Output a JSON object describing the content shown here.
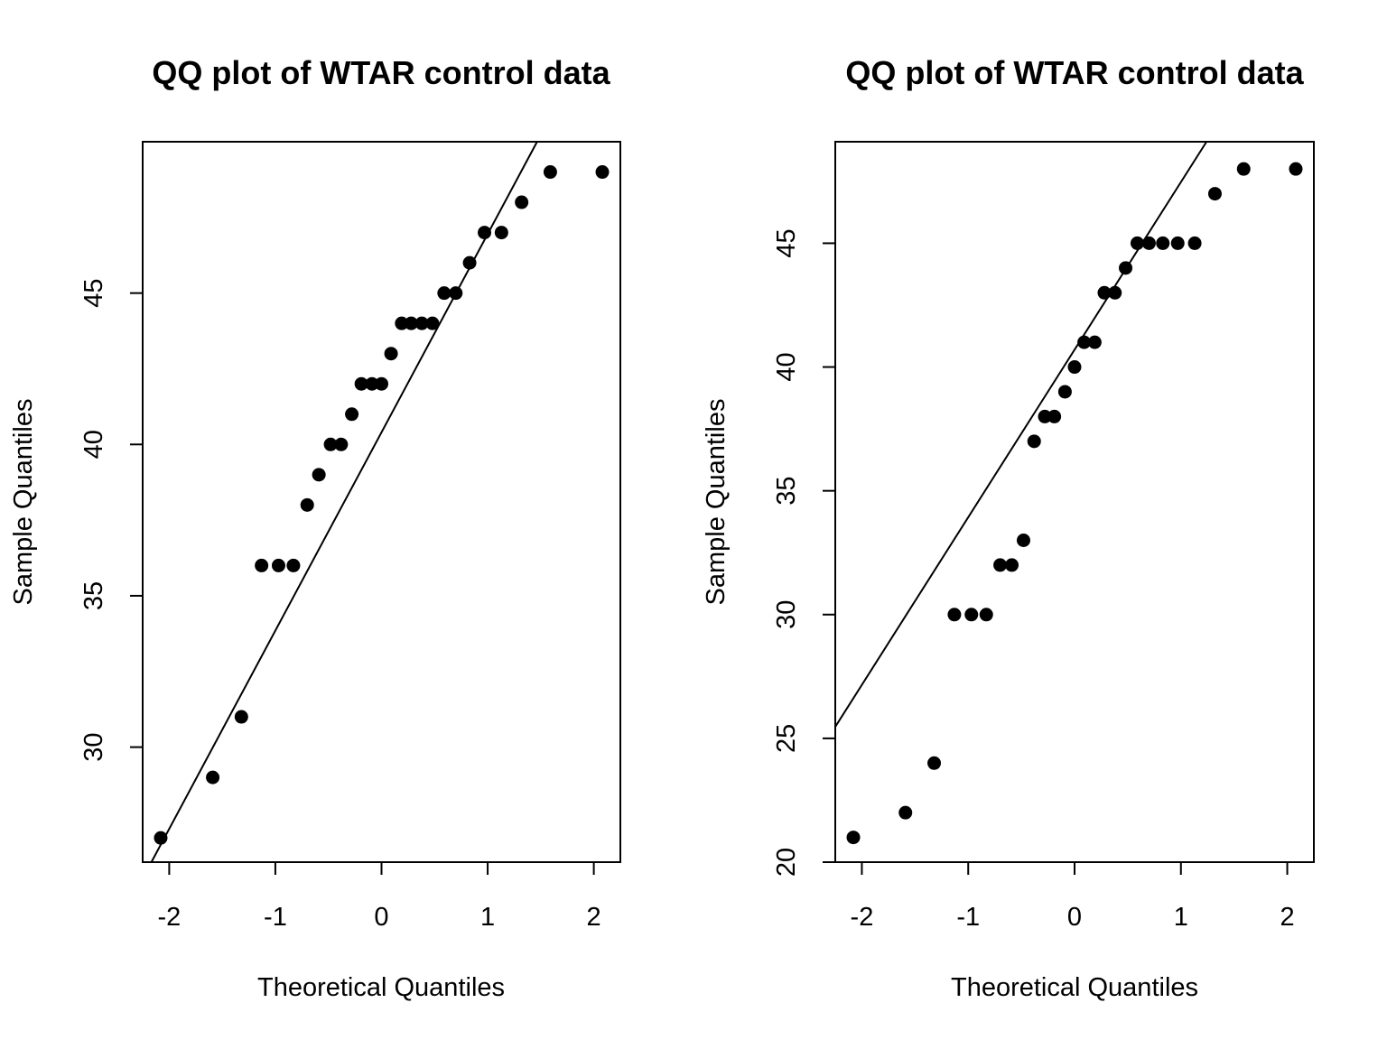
{
  "chart_data": [
    {
      "type": "scatter",
      "title": "QQ plot of WTAR control data",
      "xlabel": "Theoretical Quantiles",
      "ylabel": "Sample Quantiles",
      "xlim": [
        -2.25,
        2.25
      ],
      "ylim": [
        26.2,
        50.0
      ],
      "xticks": [
        -2,
        -1,
        0,
        1,
        2
      ],
      "yticks": [
        30,
        35,
        40,
        45
      ],
      "grid": false,
      "reference_line": {
        "intercept": 40.4,
        "slope": 6.55
      },
      "x": [
        -2.08,
        -1.59,
        -1.32,
        -1.13,
        -0.97,
        -0.83,
        -0.7,
        -0.59,
        -0.48,
        -0.38,
        -0.28,
        -0.19,
        -0.09,
        0.0,
        0.09,
        0.19,
        0.28,
        0.38,
        0.48,
        0.59,
        0.7,
        0.83,
        0.97,
        1.13,
        1.32,
        1.59,
        2.08
      ],
      "y": [
        27,
        29,
        31,
        36,
        36,
        36,
        38,
        39,
        40,
        40,
        41,
        42,
        42,
        42,
        43,
        44,
        44,
        44,
        44,
        45,
        45,
        46,
        47,
        47,
        48,
        49,
        49
      ]
    },
    {
      "type": "scatter",
      "title": "QQ plot of WTAR control data",
      "xlabel": "Theoretical Quantiles",
      "ylabel": "Sample Quantiles",
      "xlim": [
        -2.25,
        2.25
      ],
      "ylim": [
        20.0,
        49.1
      ],
      "xticks": [
        -2,
        -1,
        0,
        1,
        2
      ],
      "yticks": [
        20,
        25,
        30,
        35,
        40,
        45
      ],
      "grid": false,
      "reference_line": {
        "intercept": 40.7,
        "slope": 6.77
      },
      "x": [
        -2.08,
        -1.59,
        -1.32,
        -1.13,
        -0.97,
        -0.83,
        -0.7,
        -0.59,
        -0.48,
        -0.38,
        -0.28,
        -0.19,
        -0.09,
        0.0,
        0.09,
        0.19,
        0.28,
        0.38,
        0.48,
        0.59,
        0.7,
        0.83,
        0.97,
        1.13,
        1.32,
        1.59,
        2.08
      ],
      "y": [
        21,
        22,
        24,
        30,
        30,
        30,
        32,
        32,
        33,
        37,
        38,
        38,
        39,
        40,
        41,
        41,
        43,
        43,
        44,
        45,
        45,
        45,
        45,
        45,
        47,
        48,
        48
      ]
    }
  ]
}
